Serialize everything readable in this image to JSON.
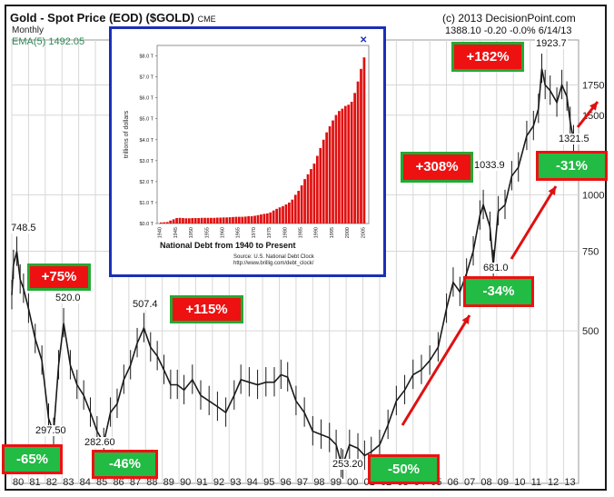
{
  "header": {
    "title": "Gold - Spot Price (EOD) ($GOLD)",
    "exchange": "CME",
    "interval": "Monthly",
    "ema_label": "EMA(5) 1492.05",
    "copyright": "(c) 2013 DecisionPoint.com",
    "stats": "1388.10  -0.20  -0.0%  6/14/13"
  },
  "colors": {
    "price": "#1a1a1a",
    "grid": "#d7d7d7",
    "badge_red": "#ee1111",
    "badge_green": "#22bb44",
    "inset_border": "#1b2fb5",
    "inset_bars": "#e01010",
    "arrow": "#e01010"
  },
  "chart_data": [
    {
      "type": "line",
      "title": "Gold - Spot Price (EOD) ($GOLD)",
      "scale": "log",
      "ylim": [
        230,
        2200
      ],
      "y_ticks": [
        500,
        750,
        1000,
        1500,
        1750
      ],
      "y_tick_labels": [
        "500",
        "750",
        "1000",
        "1500",
        "1750"
      ],
      "x_ticks": [
        "80",
        "81",
        "82",
        "83",
        "84",
        "85",
        "86",
        "87",
        "88",
        "89",
        "90",
        "91",
        "92",
        "93",
        "94",
        "95",
        "96",
        "97",
        "98",
        "99",
        "00",
        "01",
        "02",
        "03",
        "04",
        "05",
        "06",
        "07",
        "08",
        "09",
        "10",
        "11",
        "12",
        "13"
      ],
      "xlim": [
        1980.0,
        2013.9
      ],
      "series": [
        {
          "x": [
            1980.0,
            1980.1,
            1980.3,
            1980.5,
            1980.7,
            1981.0,
            1981.4,
            1981.8,
            1982.2,
            1982.5,
            1982.8,
            1983.1,
            1983.5,
            1983.9,
            1984.3,
            1984.7,
            1985.1,
            1985.5,
            1985.9,
            1986.3,
            1986.7,
            1987.1,
            1987.5,
            1987.9,
            1988.3,
            1988.7,
            1989.1,
            1989.5,
            1989.9,
            1990.3,
            1990.8,
            1991.3,
            1991.8,
            1992.3,
            1992.8,
            1993.3,
            1993.7,
            1994.2,
            1994.7,
            1995.2,
            1995.7,
            1996.1,
            1996.5,
            1997.0,
            1997.5,
            1998.0,
            1998.5,
            1999.0,
            1999.4,
            1999.7,
            1999.8,
            2000.2,
            2000.7,
            2001.1,
            2001.5,
            2002.0,
            2002.5,
            2003.0,
            2003.5,
            2004.0,
            2004.5,
            2005.0,
            2005.5,
            2006.0,
            2006.4,
            2006.8,
            2007.2,
            2007.6,
            2008.0,
            2008.2,
            2008.6,
            2008.8,
            2009.1,
            2009.5,
            2009.9,
            2010.3,
            2010.8,
            2011.2,
            2011.5,
            2011.7,
            2011.9,
            2012.2,
            2012.6,
            2012.9,
            2013.2,
            2013.4,
            2013.6
          ],
          "values": [
            600,
            700,
            748.5,
            650,
            620,
            560,
            480,
            430,
            320,
            297.5,
            420,
            520,
            420,
            380,
            360,
            330,
            300,
            282.6,
            330,
            345,
            390,
            420,
            470,
            507.4,
            460,
            440,
            410,
            380,
            380,
            370,
            390,
            360,
            350,
            340,
            330,
            360,
            390,
            385,
            380,
            385,
            385,
            400,
            395,
            350,
            330,
            300,
            295,
            290,
            280,
            255,
            253.2,
            280,
            275,
            265,
            270,
            280,
            310,
            350,
            370,
            400,
            410,
            430,
            460,
            560,
            640,
            610,
            670,
            750,
            900,
            950,
            850,
            700,
            920,
            950,
            1100,
            1150,
            1350,
            1420,
            1550,
            1900,
            1750,
            1700,
            1600,
            1750,
            1650,
            1450,
            1321.5
          ]
        }
      ],
      "annotations": {
        "price_labels": [
          "748.5",
          "520.0",
          "297.50",
          "282.60",
          "507.4",
          "253.20",
          "1033.9",
          "681.0",
          "1923.7",
          "1321.5"
        ],
        "badges": [
          "+75%",
          "-65%",
          "-46%",
          "+115%",
          "-50%",
          "+308%",
          "-34%",
          "+182%",
          "-31%"
        ]
      }
    },
    {
      "type": "bar",
      "title": "National Debt from 1940 to Present",
      "ylabel": "trillions of dollars",
      "source": "Source: U.S. National Debt Clock",
      "source_url": "http://www.brillig.com/debt_clock/",
      "y_tick_labels": [
        "$0.0 T",
        "$1.0 T",
        "$2.0 T",
        "$3.0 T",
        "$4.0 T",
        "$5.0 T",
        "$6.0 T",
        "$7.0 T",
        "$8.0 T"
      ],
      "ylim": [
        0,
        8.5
      ],
      "x_tick_labels": [
        "1940",
        "1945",
        "1950",
        "1955",
        "1960",
        "1965",
        "1970",
        "1975",
        "1980",
        "1985",
        "1990",
        "1995",
        "2000",
        "2005"
      ],
      "values": [
        0.05,
        0.06,
        0.07,
        0.14,
        0.2,
        0.26,
        0.27,
        0.26,
        0.25,
        0.25,
        0.26,
        0.26,
        0.26,
        0.27,
        0.27,
        0.27,
        0.27,
        0.27,
        0.28,
        0.28,
        0.29,
        0.29,
        0.3,
        0.31,
        0.32,
        0.32,
        0.32,
        0.33,
        0.35,
        0.35,
        0.37,
        0.4,
        0.43,
        0.46,
        0.48,
        0.53,
        0.62,
        0.7,
        0.77,
        0.83,
        0.91,
        1.0,
        1.14,
        1.37,
        1.56,
        1.82,
        2.12,
        2.35,
        2.6,
        2.86,
        3.23,
        3.6,
        4.0,
        4.35,
        4.64,
        4.92,
        5.18,
        5.37,
        5.48,
        5.61,
        5.67,
        5.81,
        6.23,
        6.78,
        7.38,
        7.93
      ]
    }
  ]
}
